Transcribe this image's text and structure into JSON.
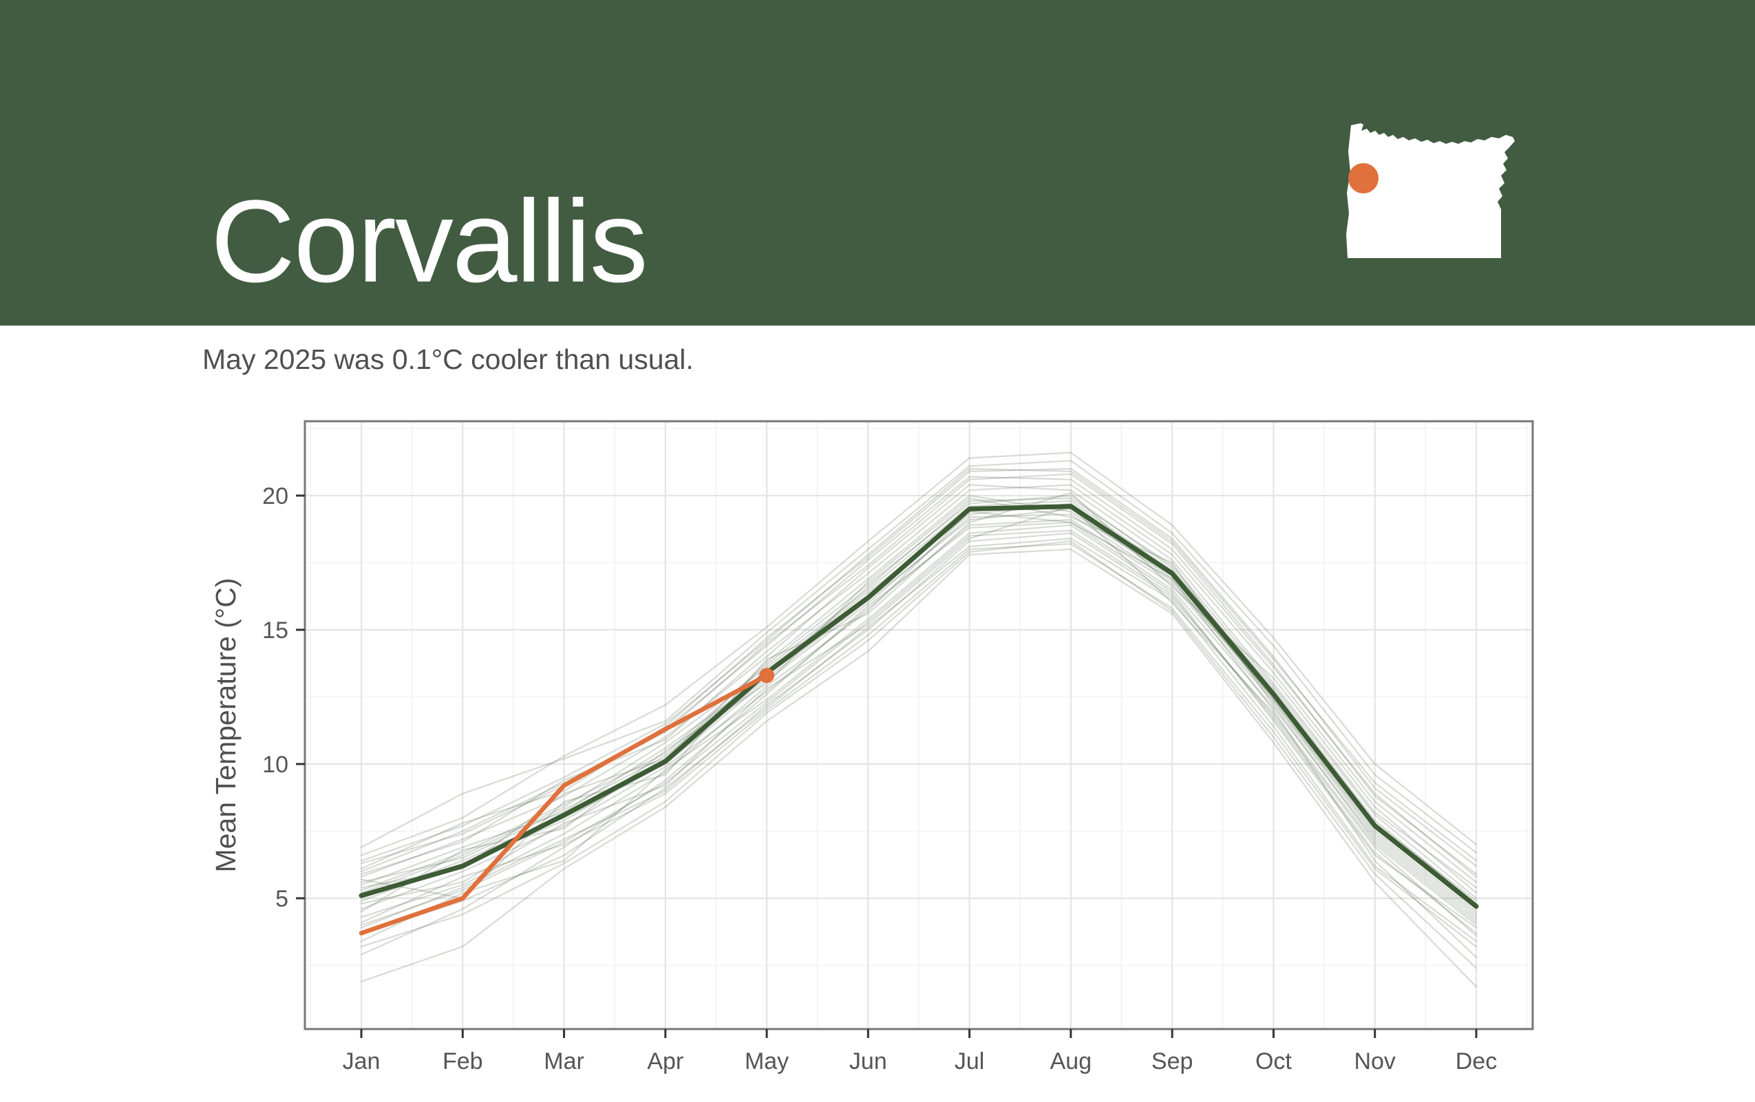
{
  "header": {
    "title": "Corvallis",
    "bg_color": "#425C41",
    "title_color": "#ffffff",
    "map": {
      "fill": "#ffffff",
      "marker_color": "#E0703C"
    }
  },
  "subtitle": {
    "text": "May 2025 was 0.1°C cooler than usual.",
    "color": "#4F4F4F"
  },
  "chart_data": {
    "type": "line",
    "title": "",
    "xlabel": "",
    "ylabel": "Mean Temperature (°C)",
    "categories": [
      "Jan",
      "Feb",
      "Mar",
      "Apr",
      "May",
      "Jun",
      "Jul",
      "Aug",
      "Sep",
      "Oct",
      "Nov",
      "Dec"
    ],
    "yticks": [
      5,
      10,
      15,
      20
    ],
    "yminor": [
      2.5,
      7.5,
      12.5,
      17.5,
      22.5
    ],
    "ylim": [
      0.2,
      22.85
    ],
    "grid": "major+minor",
    "legend_position": "none",
    "series": [
      {
        "name": "historical-years",
        "color": "rgba(93,111,85,0.25)",
        "width": 2.2,
        "values": [
          [
            3.9,
            5.4,
            7.2,
            9.0,
            12.2,
            15.0,
            18.3,
            18.6,
            16.2,
            11.8,
            6.9,
            3.6
          ],
          [
            6.3,
            7.4,
            9.2,
            11.2,
            14.5,
            17.4,
            20.6,
            20.8,
            18.2,
            13.7,
            8.8,
            5.9
          ],
          [
            4.5,
            6.8,
            7.6,
            10.5,
            13.0,
            16.8,
            19.9,
            19.2,
            17.5,
            12.2,
            7.1,
            4.1
          ],
          [
            5.7,
            5.0,
            8.6,
            9.6,
            13.9,
            15.6,
            19.0,
            20.1,
            16.6,
            13.2,
            8.4,
            5.2
          ],
          [
            2.9,
            4.6,
            6.9,
            9.4,
            12.6,
            15.9,
            18.8,
            19.0,
            16.9,
            12.0,
            6.4,
            2.8
          ],
          [
            6.9,
            8.9,
            10.2,
            11.6,
            14.9,
            18.0,
            21.1,
            21.3,
            18.6,
            14.4,
            9.6,
            6.7
          ],
          [
            5.2,
            6.6,
            8.4,
            10.8,
            13.6,
            16.5,
            19.6,
            19.8,
            17.2,
            12.8,
            7.9,
            4.8
          ],
          [
            4.1,
            5.8,
            7.0,
            8.9,
            12.0,
            14.8,
            18.0,
            18.2,
            15.8,
            11.2,
            6.1,
            3.2
          ],
          [
            5.9,
            7.1,
            9.4,
            10.9,
            14.2,
            17.1,
            20.2,
            20.4,
            17.8,
            13.4,
            8.6,
            5.6
          ],
          [
            3.4,
            5.2,
            6.4,
            9.8,
            12.4,
            15.4,
            18.6,
            18.9,
            16.4,
            11.6,
            6.6,
            3.9
          ],
          [
            5.4,
            6.1,
            8.9,
            10.2,
            13.8,
            16.9,
            20.0,
            19.4,
            17.0,
            12.4,
            7.4,
            4.4
          ],
          [
            6.1,
            7.8,
            9.0,
            11.4,
            14.7,
            17.7,
            20.9,
            21.0,
            18.4,
            14.0,
            9.1,
            6.2
          ],
          [
            4.8,
            5.6,
            7.8,
            9.2,
            12.8,
            15.2,
            18.4,
            19.6,
            16.0,
            11.9,
            7.0,
            4.0
          ],
          [
            5.5,
            6.9,
            8.2,
            10.6,
            13.3,
            16.6,
            19.8,
            19.9,
            17.4,
            12.9,
            8.1,
            5.0
          ],
          [
            1.9,
            3.2,
            6.1,
            8.4,
            11.6,
            14.2,
            17.8,
            18.0,
            15.6,
            10.8,
            5.6,
            1.7
          ],
          [
            6.6,
            8.0,
            10.3,
            12.2,
            15.1,
            18.3,
            21.4,
            21.6,
            18.9,
            14.7,
            10.0,
            7.0
          ],
          [
            5.0,
            6.4,
            8.0,
            10.0,
            13.1,
            16.0,
            19.2,
            19.3,
            16.8,
            12.5,
            7.6,
            4.6
          ],
          [
            4.3,
            5.5,
            7.4,
            9.7,
            12.9,
            15.7,
            19.4,
            19.0,
            16.5,
            12.1,
            7.2,
            4.2
          ],
          [
            5.8,
            7.2,
            8.8,
            11.0,
            14.0,
            17.3,
            20.4,
            20.2,
            17.6,
            13.0,
            8.2,
            5.4
          ],
          [
            3.7,
            4.9,
            6.6,
            9.1,
            12.1,
            15.1,
            18.1,
            18.4,
            16.1,
            11.4,
            6.2,
            3.4
          ],
          [
            5.3,
            6.7,
            8.5,
            10.4,
            13.7,
            16.7,
            19.7,
            20.0,
            17.3,
            12.7,
            7.8,
            4.9
          ],
          [
            4.6,
            6.0,
            7.7,
            9.9,
            12.7,
            15.8,
            18.9,
            19.1,
            16.7,
            12.3,
            7.3,
            4.3
          ],
          [
            6.0,
            7.5,
            9.3,
            11.3,
            14.4,
            17.6,
            20.7,
            20.6,
            18.0,
            13.6,
            8.9,
            5.8
          ],
          [
            4.0,
            5.3,
            7.1,
            9.3,
            12.3,
            15.3,
            18.5,
            18.7,
            16.3,
            11.7,
            6.7,
            3.7
          ],
          [
            5.6,
            6.5,
            8.3,
            10.3,
            13.5,
            16.4,
            19.3,
            19.7,
            17.1,
            12.6,
            7.7,
            4.7
          ],
          [
            4.9,
            6.3,
            7.9,
            10.1,
            13.2,
            16.1,
            19.1,
            19.5,
            16.9,
            12.4,
            7.5,
            4.5
          ],
          [
            6.4,
            7.7,
            9.5,
            11.5,
            14.6,
            17.8,
            21.0,
            20.9,
            18.3,
            13.9,
            9.3,
            6.4
          ],
          [
            3.2,
            4.4,
            6.3,
            8.6,
            11.9,
            14.6,
            17.9,
            18.3,
            15.7,
            11.0,
            5.9,
            2.4
          ]
        ]
      },
      {
        "name": "average",
        "color": "#3D5B35",
        "width": 7,
        "values": [
          5.1,
          6.2,
          8.1,
          10.1,
          13.4,
          16.2,
          19.5,
          19.6,
          17.1,
          12.6,
          7.7,
          4.7
        ]
      },
      {
        "name": "year-2025",
        "color": "#E0703C",
        "width": 6.5,
        "end_marker": true,
        "marker_radius": 11,
        "values": [
          3.7,
          5.0,
          9.2,
          11.3,
          13.3
        ]
      }
    ],
    "theme": {
      "grid_major": "#e4e4e4",
      "grid_minor": "#f2f2f2",
      "panel_border": "#777777",
      "tick_color": "#333333",
      "axis_text": "#555555",
      "axis_title": "#4F4F4F"
    }
  }
}
